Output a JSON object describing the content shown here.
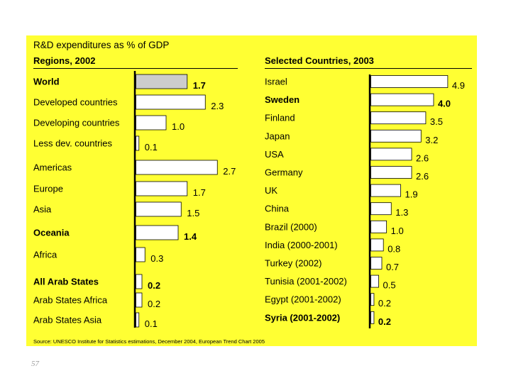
{
  "colors": {
    "background": "#ffff33",
    "bar_fill": "#ffffff",
    "bar_highlight": "#cccccc",
    "bar_stroke": "#000000",
    "text": "#000000"
  },
  "slide_number": "57",
  "chart_data": [
    {
      "type": "bar",
      "orientation": "horizontal",
      "title": "R&D expenditures as % of GDP",
      "subtitle": "Regions, 2002",
      "categories": [
        "World",
        "Developed countries",
        "Developing countries",
        "Less dev. countries",
        "Americas",
        "Europe",
        "Asia",
        "Oceania",
        "Africa",
        "All Arab States",
        "Arab States Africa",
        "Arab States Asia"
      ],
      "values": [
        1.7,
        2.3,
        1.0,
        0.1,
        2.7,
        1.7,
        1.5,
        1.4,
        0.3,
        0.2,
        0.2,
        0.1
      ],
      "value_labels": [
        "1.7",
        "2.3",
        "1.0",
        "0.1",
        "2.7",
        "1.7",
        "1.5",
        "1.4",
        "0.3",
        "0.2",
        "0.2",
        "0.1"
      ],
      "bold": [
        true,
        false,
        false,
        false,
        false,
        false,
        false,
        true,
        false,
        true,
        false,
        false
      ],
      "highlight": [
        true,
        false,
        false,
        false,
        false,
        false,
        false,
        false,
        false,
        false,
        false,
        false
      ],
      "xlim": [
        0,
        3.2
      ]
    },
    {
      "type": "bar",
      "orientation": "horizontal",
      "title": "R&D expenditures as % of GDP",
      "subtitle": "Selected Countries, 2003",
      "categories": [
        "Israel",
        "Sweden",
        "Finland",
        "Japan",
        "USA",
        "Germany",
        "UK",
        "China",
        "Brazil (2000)",
        "India (2000-2001)",
        "Turkey (2002)",
        "Tunisia (2001-2002)",
        "Egypt (2001-2002)",
        "Syria (2001-2002)"
      ],
      "values": [
        4.9,
        4.0,
        3.5,
        3.2,
        2.6,
        2.6,
        1.9,
        1.3,
        1.0,
        0.8,
        0.7,
        0.5,
        0.2,
        0.2
      ],
      "value_labels": [
        "4.9",
        "4.0",
        "3.5",
        "3.2",
        "2.6",
        "2.6",
        "1.9",
        "1.3",
        "1.0",
        "0.8",
        "0.7",
        "0.5",
        "0.2",
        "0.2"
      ],
      "bold": [
        false,
        true,
        false,
        false,
        false,
        false,
        false,
        false,
        false,
        false,
        false,
        false,
        false,
        true
      ],
      "highlight": [
        false,
        false,
        false,
        false,
        false,
        false,
        false,
        false,
        false,
        false,
        false,
        false,
        false,
        false
      ],
      "xlim": [
        0,
        5.2
      ]
    }
  ],
  "source": "Source: UNESCO Institute for Statistics estimations, December 2004, European Trend Chart 2005"
}
